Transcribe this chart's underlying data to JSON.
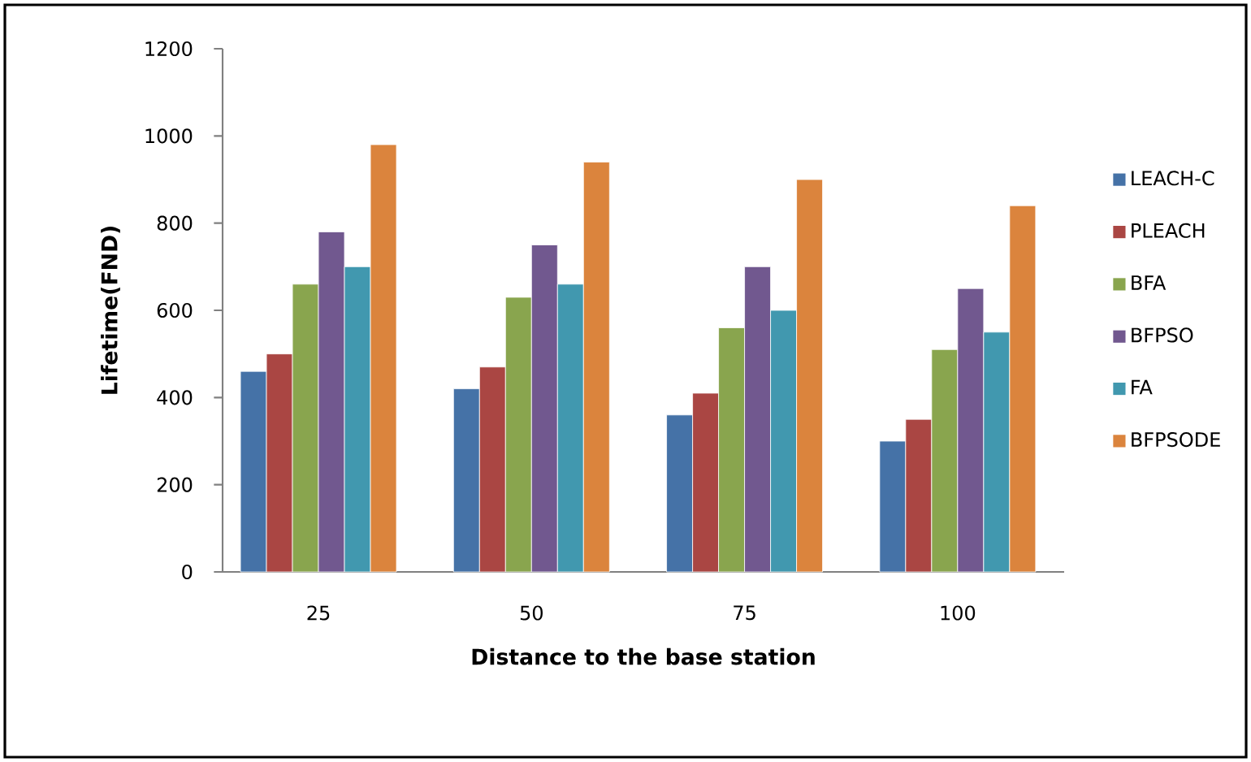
{
  "chart_data": {
    "type": "bar",
    "xlabel": "Distance to the base station",
    "ylabel": "Lifetime(FND)",
    "categories": [
      "25",
      "50",
      "75",
      "100"
    ],
    "series": [
      {
        "name": "LEACH-C",
        "color": "#4572a7",
        "values": [
          460,
          420,
          360,
          300
        ]
      },
      {
        "name": "PLEACH",
        "color": "#aa4643",
        "values": [
          500,
          470,
          410,
          350
        ]
      },
      {
        "name": "BFA",
        "color": "#89a54e",
        "values": [
          660,
          630,
          560,
          510
        ]
      },
      {
        "name": "BFPSO",
        "color": "#71588f",
        "values": [
          780,
          750,
          700,
          650
        ]
      },
      {
        "name": "FA",
        "color": "#4198af",
        "values": [
          700,
          660,
          600,
          550
        ]
      },
      {
        "name": "BFPSODE",
        "color": "#db843d",
        "values": [
          980,
          940,
          900,
          840
        ]
      }
    ],
    "ylim": [
      0,
      1200
    ],
    "yticks": [
      0,
      200,
      400,
      600,
      800,
      1000,
      1200
    ],
    "grid": false,
    "legend": "right"
  }
}
